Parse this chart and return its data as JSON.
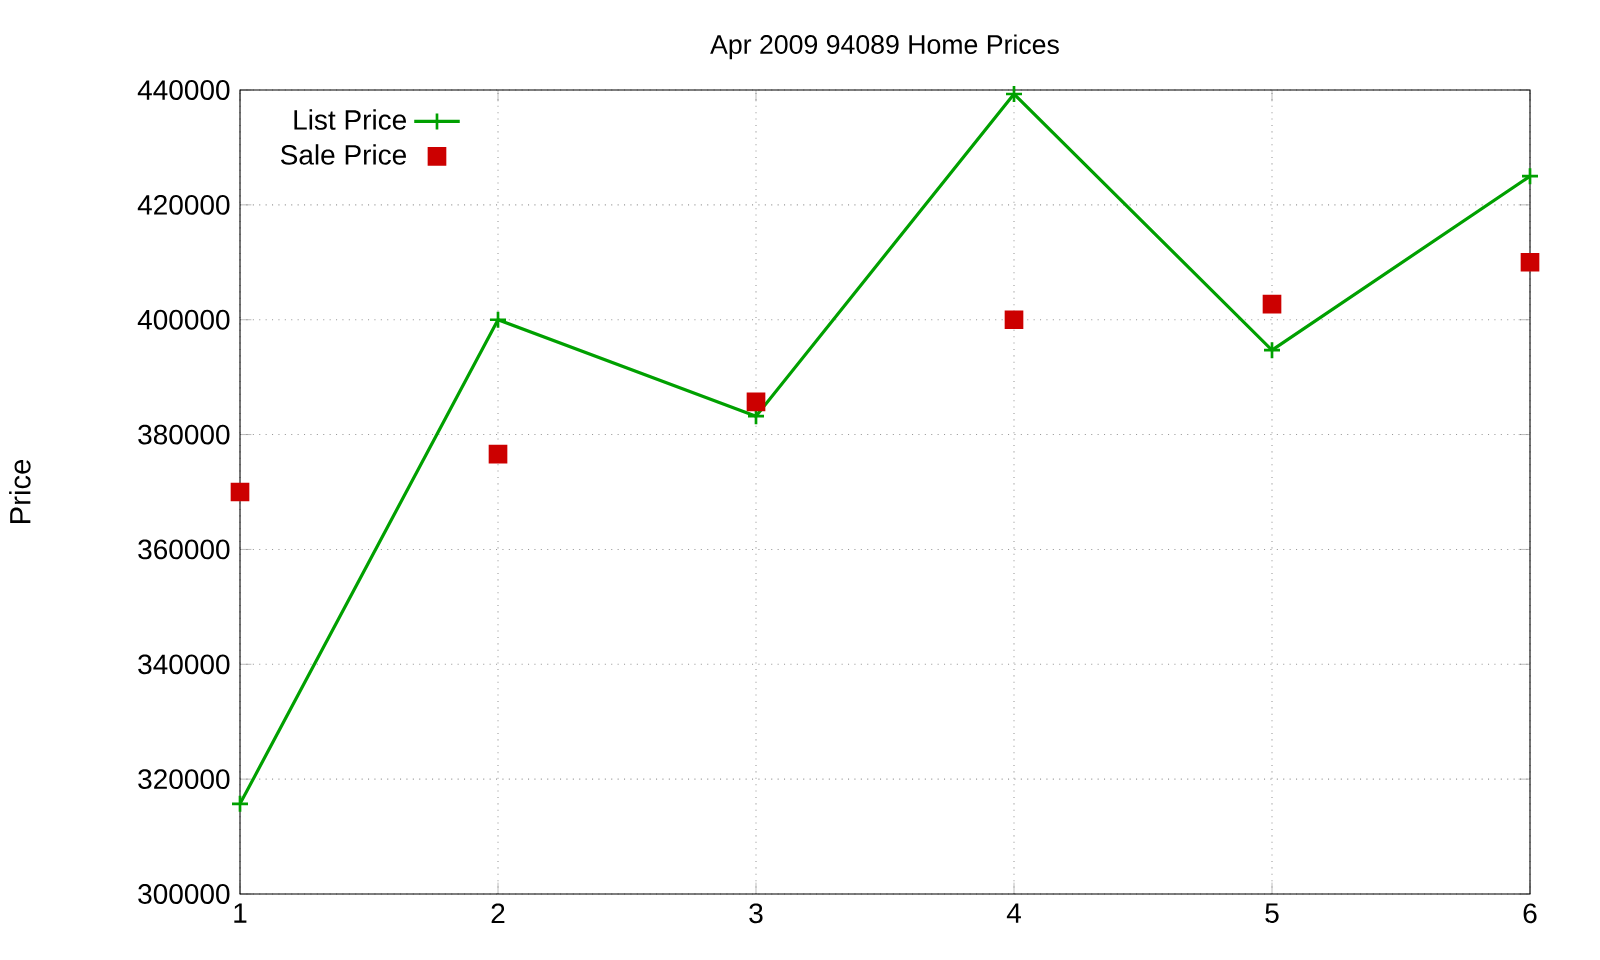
{
  "chart_data": {
    "type": "line",
    "title": "Apr 2009 94089 Home Prices",
    "ylabel": "Price",
    "x": [
      1,
      2,
      3,
      4,
      5,
      6
    ],
    "series": [
      {
        "name": "List Price",
        "color": "#00a000",
        "marker": "cross",
        "values": [
          315700,
          400000,
          383200,
          439300,
          394700,
          425000
        ]
      },
      {
        "name": "Sale Price",
        "color": "#cc0000",
        "type": "scatter",
        "marker": "square",
        "values": [
          370000,
          376600,
          385700,
          400000,
          402700,
          410000
        ]
      }
    ],
    "xlim": [
      1,
      6
    ],
    "xticks": [
      1,
      2,
      3,
      4,
      5,
      6
    ],
    "ylim": [
      300000,
      440000
    ],
    "yticks": [
      300000,
      320000,
      340000,
      360000,
      380000,
      400000,
      420000,
      440000
    ],
    "grid": true,
    "legend": "top left"
  }
}
